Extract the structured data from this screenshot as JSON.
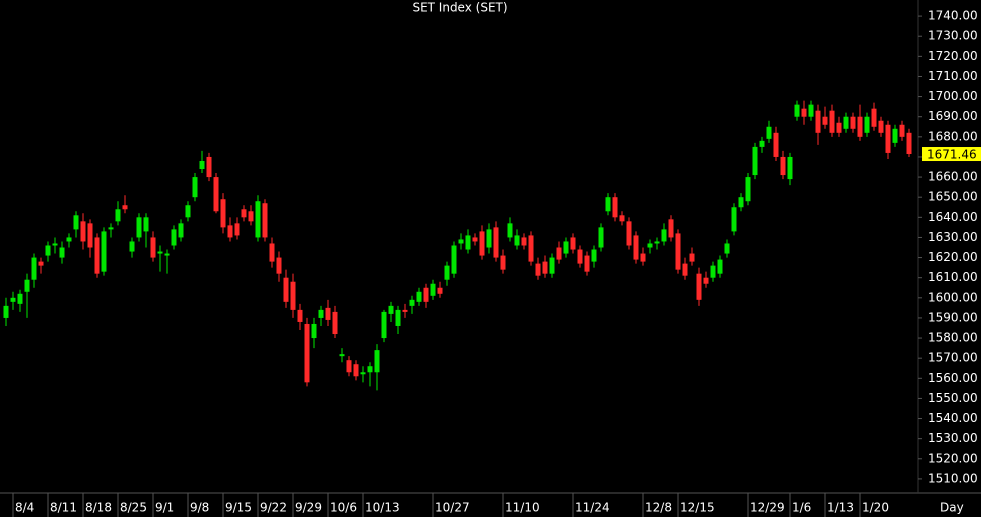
{
  "chart_data": {
    "type": "candlestick",
    "title": "SET Index (SET)",
    "xlabel": "Day",
    "up_color": "#00e600",
    "down_color": "#ff2a2a",
    "last_color": "#ffff00",
    "categories": [
      null,
      "8/4",
      null,
      null,
      null,
      null,
      "8/11",
      null,
      null,
      null,
      null,
      "8/18",
      null,
      null,
      null,
      null,
      "8/25",
      null,
      null,
      null,
      null,
      "9/1",
      null,
      null,
      null,
      null,
      "9/8",
      null,
      null,
      null,
      null,
      "9/15",
      null,
      null,
      null,
      null,
      "9/22",
      null,
      null,
      null,
      null,
      "9/29",
      null,
      null,
      null,
      null,
      "10/6",
      null,
      null,
      null,
      null,
      "10/13",
      null,
      null,
      null,
      null,
      null,
      null,
      null,
      null,
      null,
      "10/27",
      null,
      null,
      null,
      null,
      null,
      null,
      null,
      null,
      null,
      "11/10",
      null,
      null,
      null,
      null,
      null,
      null,
      null,
      null,
      null,
      "11/24",
      null,
      null,
      null,
      null,
      null,
      null,
      null,
      null,
      null,
      "12/8",
      null,
      null,
      null,
      null,
      "12/15",
      null,
      null,
      null,
      null,
      null,
      null,
      null,
      null,
      null,
      "12/29",
      null,
      null,
      null,
      null,
      null,
      "1/6",
      null,
      null,
      null,
      null,
      "1/13",
      null,
      null,
      null,
      null,
      "1/20",
      null,
      null,
      null,
      null,
      null,
      null,
      null
    ],
    "open": [
      1590,
      1598,
      1597,
      1603,
      1609,
      1618,
      1621,
      1626,
      1620,
      1628,
      1634,
      1638,
      1637,
      1630,
      1613,
      1634,
      1638,
      1646,
      1623,
      1630,
      1633,
      1630,
      1622,
      1621,
      1626,
      1630,
      1640,
      1650,
      1664,
      1670,
      1660,
      1649,
      1636,
      1637,
      1644,
      1643,
      1630,
      1647,
      1627,
      1620,
      1610,
      1608,
      1594,
      1587,
      1580,
      1590,
      1595,
      1593,
      1571,
      1569,
      1567,
      1562,
      1563,
      1563,
      1580,
      1592,
      1586,
      1594,
      1596,
      1598,
      1605,
      1601,
      1605,
      1609,
      1612,
      1627,
      1624,
      1630,
      1633,
      1625,
      1635,
      1621,
      1630,
      1626,
      1630,
      1631,
      1617,
      1618,
      1612,
      1625,
      1622,
      1630,
      1624,
      1621,
      1618,
      1625,
      1643,
      1650,
      1641,
      1638,
      1631,
      1622,
      1625,
      1627,
      1628,
      1639,
      1632,
      1617,
      1622,
      1612,
      1610,
      1610,
      1612,
      1622,
      1633,
      1645,
      1648,
      1661,
      1675,
      1679,
      1682,
      1670,
      1659,
      1690,
      1694,
      1690,
      1693,
      1690,
      1693,
      1687,
      1684,
      1690,
      1690,
      1682,
      1694,
      1688,
      1686,
      1677,
      1686,
      1682
    ],
    "high": [
      1600,
      1603,
      1604,
      1612,
      1622,
      1620,
      1628,
      1630,
      1628,
      1632,
      1643,
      1642,
      1639,
      1632,
      1635,
      1637,
      1648,
      1651,
      1630,
      1642,
      1642,
      1633,
      1626,
      1624,
      1636,
      1639,
      1648,
      1662,
      1673,
      1672,
      1662,
      1652,
      1640,
      1640,
      1646,
      1646,
      1651,
      1649,
      1630,
      1623,
      1614,
      1612,
      1597,
      1590,
      1590,
      1596,
      1599,
      1596,
      1575,
      1571,
      1569,
      1566,
      1568,
      1577,
      1594,
      1598,
      1596,
      1597,
      1601,
      1605,
      1607,
      1609,
      1608,
      1618,
      1628,
      1632,
      1634,
      1632,
      1636,
      1637,
      1638,
      1624,
      1640,
      1634,
      1632,
      1633,
      1620,
      1621,
      1622,
      1628,
      1630,
      1632,
      1626,
      1623,
      1626,
      1637,
      1652,
      1652,
      1643,
      1640,
      1633,
      1625,
      1629,
      1630,
      1637,
      1641,
      1634,
      1620,
      1625,
      1615,
      1613,
      1618,
      1621,
      1629,
      1647,
      1652,
      1662,
      1677,
      1680,
      1688,
      1685,
      1673,
      1672,
      1698,
      1698,
      1698,
      1696,
      1695,
      1696,
      1690,
      1692,
      1692,
      1696,
      1692,
      1697,
      1690,
      1688,
      1686,
      1688,
      1684
    ],
    "low": [
      1586,
      1594,
      1593,
      1590,
      1605,
      1612,
      1618,
      1622,
      1617,
      1625,
      1630,
      1624,
      1620,
      1610,
      1611,
      1630,
      1636,
      1642,
      1620,
      1628,
      1625,
      1618,
      1613,
      1612,
      1624,
      1628,
      1638,
      1648,
      1662,
      1658,
      1642,
      1632,
      1628,
      1629,
      1638,
      1636,
      1628,
      1628,
      1615,
      1608,
      1595,
      1590,
      1584,
      1556,
      1575,
      1586,
      1586,
      1580,
      1568,
      1561,
      1559,
      1558,
      1556,
      1554,
      1578,
      1588,
      1582,
      1590,
      1592,
      1596,
      1595,
      1599,
      1600,
      1606,
      1610,
      1624,
      1622,
      1626,
      1619,
      1622,
      1618,
      1612,
      1628,
      1624,
      1624,
      1616,
      1609,
      1610,
      1610,
      1617,
      1620,
      1622,
      1615,
      1611,
      1615,
      1623,
      1641,
      1638,
      1636,
      1624,
      1617,
      1616,
      1622,
      1624,
      1626,
      1628,
      1612,
      1609,
      1616,
      1596,
      1605,
      1608,
      1610,
      1620,
      1631,
      1643,
      1646,
      1659,
      1672,
      1677,
      1668,
      1659,
      1656,
      1688,
      1686,
      1688,
      1676,
      1684,
      1680,
      1680,
      1682,
      1682,
      1678,
      1680,
      1683,
      1680,
      1669,
      1675,
      1678,
      1670
    ],
    "close": [
      1596,
      1600,
      1602,
      1609,
      1620,
      1616,
      1626,
      1627,
      1625,
      1630,
      1641,
      1628,
      1625,
      1612,
      1633,
      1635,
      1644,
      1644,
      1628,
      1640,
      1640,
      1620,
      1623,
      1622,
      1634,
      1637,
      1646,
      1660,
      1668,
      1660,
      1643,
      1635,
      1630,
      1631,
      1640,
      1638,
      1648,
      1630,
      1618,
      1612,
      1598,
      1594,
      1588,
      1558,
      1587,
      1594,
      1589,
      1582,
      1572,
      1563,
      1561,
      1563,
      1566,
      1574,
      1593,
      1596,
      1594,
      1593,
      1599,
      1603,
      1598,
      1607,
      1602,
      1616,
      1626,
      1629,
      1631,
      1628,
      1621,
      1634,
      1620,
      1614,
      1637,
      1631,
      1626,
      1618,
      1611,
      1612,
      1620,
      1619,
      1628,
      1624,
      1617,
      1613,
      1624,
      1635,
      1650,
      1640,
      1638,
      1626,
      1619,
      1618,
      1627,
      1628,
      1634,
      1630,
      1614,
      1611,
      1618,
      1599,
      1607,
      1616,
      1619,
      1627,
      1645,
      1650,
      1660,
      1675,
      1678,
      1685,
      1670,
      1661,
      1670,
      1696,
      1690,
      1696,
      1682,
      1686,
      1682,
      1682,
      1690,
      1684,
      1680,
      1690,
      1685,
      1682,
      1672,
      1684,
      1680,
      1671.46
    ],
    "ylim": [
      1503,
      1748
    ],
    "yticks": [
      {
        "value": 1510,
        "label": "1510.00"
      },
      {
        "value": 1520,
        "label": "1520.00"
      },
      {
        "value": 1530,
        "label": "1530.00"
      },
      {
        "value": 1540,
        "label": "1540.00"
      },
      {
        "value": 1550,
        "label": "1550.00"
      },
      {
        "value": 1560,
        "label": "1560.00"
      },
      {
        "value": 1570,
        "label": "1570.00"
      },
      {
        "value": 1580,
        "label": "1580.00"
      },
      {
        "value": 1590,
        "label": "1590.00"
      },
      {
        "value": 1600,
        "label": "1600.00"
      },
      {
        "value": 1610,
        "label": "1610.00"
      },
      {
        "value": 1620,
        "label": "1620.00"
      },
      {
        "value": 1630,
        "label": "1630.00"
      },
      {
        "value": 1640,
        "label": "1640.00"
      },
      {
        "value": 1650,
        "label": "1650.00"
      },
      {
        "value": 1660,
        "label": "1660.00"
      },
      {
        "value": 1670,
        "label": "1670.00"
      },
      {
        "value": 1680,
        "label": "1680.00"
      },
      {
        "value": 1690,
        "label": "1690.00"
      },
      {
        "value": 1700,
        "label": "1700.00"
      },
      {
        "value": 1710,
        "label": "1710.00"
      },
      {
        "value": 1720,
        "label": "1720.00"
      },
      {
        "value": 1730,
        "label": "1730.00"
      },
      {
        "value": 1740,
        "label": "1740.00"
      }
    ]
  }
}
